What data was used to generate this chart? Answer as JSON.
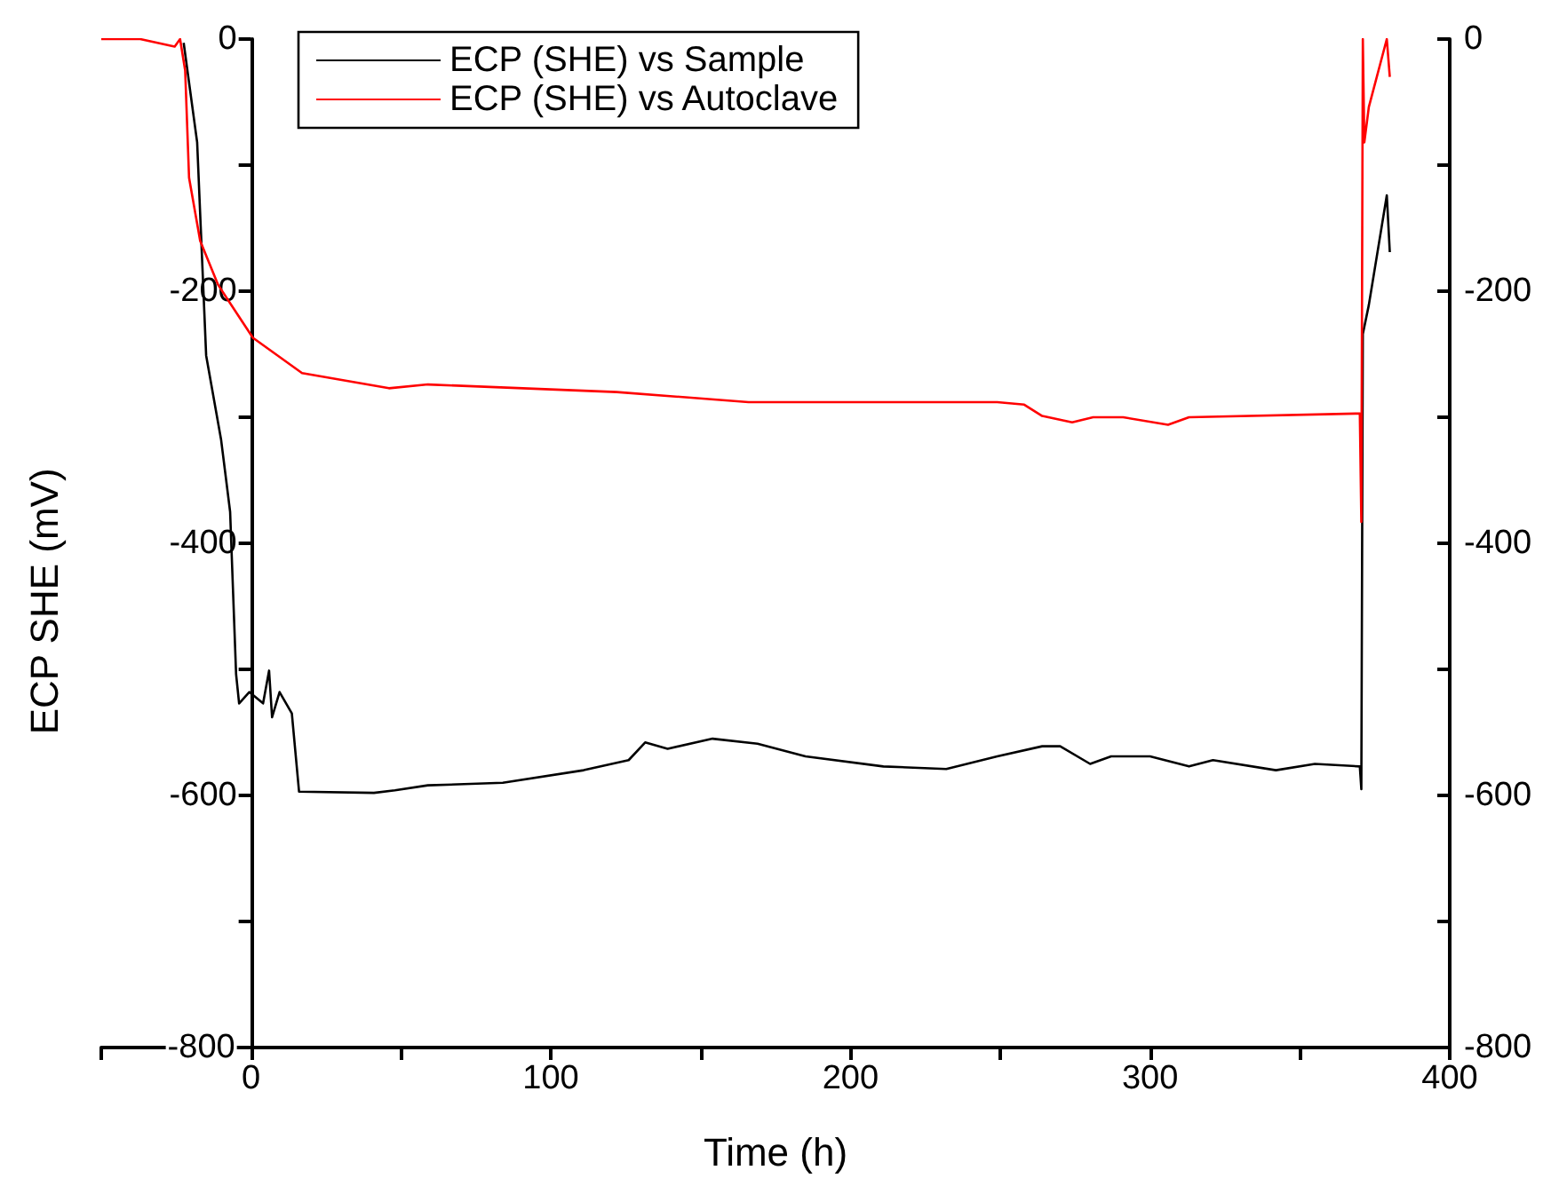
{
  "chart_data": {
    "type": "line",
    "xlabel": "Time (h)",
    "ylabel": "ECP SHE (mV)",
    "xlim": [
      -50,
      400
    ],
    "xticks": [
      {
        "value": -50,
        "label": null
      },
      0,
      {
        "value": 50,
        "label": null
      },
      100,
      {
        "value": 150,
        "label": null
      },
      200,
      {
        "value": 250,
        "label": null
      },
      300,
      {
        "value": 350,
        "label": null
      },
      400
    ],
    "ylim": [
      -800,
      0
    ],
    "yticks": [
      -800,
      {
        "value": -700,
        "label": null
      },
      -600,
      {
        "value": -500,
        "label": null
      },
      -400,
      {
        "value": -300,
        "label": null
      },
      -200,
      {
        "value": -100,
        "label": null
      },
      0
    ],
    "y2lim": [
      -800,
      0
    ],
    "y2ticks": [
      -800,
      {
        "value": -700,
        "label": null
      },
      -600,
      {
        "value": -500,
        "label": null
      },
      -400,
      {
        "value": -300,
        "label": null
      },
      -200,
      {
        "value": -100,
        "label": null
      },
      0
    ],
    "grid": false,
    "legend": "top left",
    "marker": "none",
    "line_style": "solid",
    "series": [
      {
        "name": "ECP (SHE) vs Sample",
        "color": "#000000",
        "x": [
          -22.5,
          -18,
          -15,
          -10,
          -7,
          -5,
          -4,
          -0.6,
          4,
          6,
          7,
          9.5,
          13.6,
          16,
          41,
          48,
          59,
          84,
          111,
          126,
          131.5,
          139,
          154,
          169,
          185,
          211,
          232,
          249,
          264,
          270,
          280,
          287,
          300,
          313,
          321,
          342,
          355,
          370,
          370.5,
          371,
          373,
          379,
          380
        ],
        "values": [
          -3,
          -82,
          -251,
          -318,
          -375,
          -504,
          -527,
          -518,
          -527,
          -501,
          -538,
          -518,
          -535,
          -597,
          -598,
          -596,
          -592,
          -590,
          -580,
          -572,
          -558,
          -563,
          -555,
          -559,
          -569,
          -577,
          -579,
          -569,
          -561,
          -561,
          -575,
          -569,
          -569,
          -577,
          -572,
          -580,
          -575,
          -577,
          -595,
          -234,
          -211,
          -124,
          -169
        ]
      },
      {
        "name": "ECP (SHE) vs Autoclave",
        "color": "#ff0000",
        "x": [
          -50,
          -37,
          -25.5,
          -23.7,
          -22,
          -20.7,
          -17,
          -11,
          0.6,
          17,
          46,
          59,
          122,
          166,
          249,
          258,
          264,
          274,
          281,
          291,
          306,
          313,
          370,
          370.5,
          371,
          371.5,
          373,
          379,
          380
        ],
        "values": [
          0,
          0,
          -6,
          0,
          -25,
          -110,
          -160,
          -195,
          -237,
          -265,
          -277,
          -274,
          -280,
          -288,
          -288,
          -290,
          -299,
          -304,
          -300,
          -300,
          -306,
          -300,
          -297,
          -383,
          0,
          -82,
          -54,
          0,
          -30
        ]
      }
    ]
  }
}
